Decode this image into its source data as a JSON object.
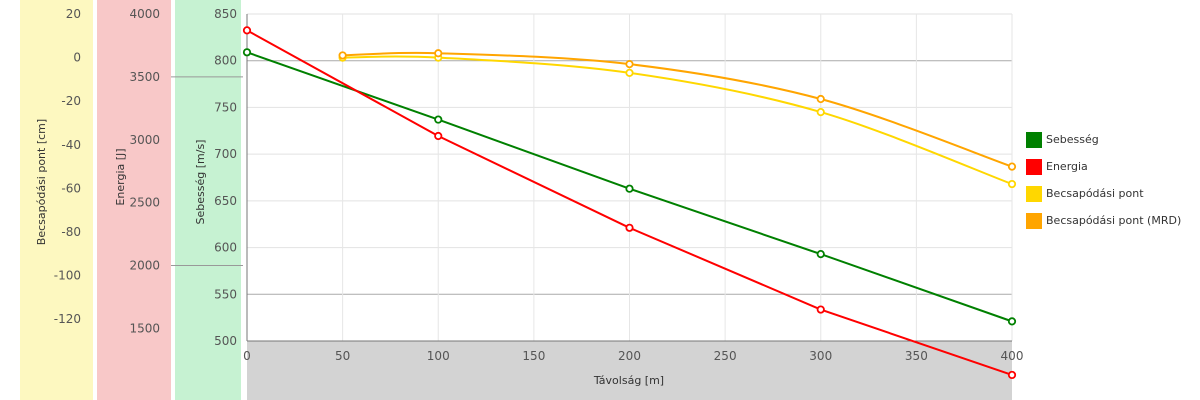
{
  "chart_data": {
    "type": "line",
    "xlabel": "Távolság [m]",
    "xlim": [
      0,
      400
    ],
    "x_ticks": [
      0,
      50,
      100,
      150,
      200,
      250,
      300,
      350,
      400
    ],
    "grid": true,
    "legend_position": "right",
    "axes": [
      {
        "id": "drop",
        "label": "Becsapódási pont [cm]",
        "ylim": [
          -130,
          20
        ],
        "ticks": [
          20,
          0,
          -20,
          -40,
          -60,
          -80,
          -100,
          -120
        ],
        "band_color": "#fdf8c0"
      },
      {
        "id": "energy",
        "label": "Energia [J]",
        "ylim": [
          1400,
          4000
        ],
        "ticks": [
          4000,
          3500,
          3000,
          2500,
          2000,
          1500
        ],
        "band_color": "#f8c8c8"
      },
      {
        "id": "velocity",
        "label": "Sebesség [m/s]",
        "ylim": [
          500,
          850
        ],
        "ticks": [
          850,
          800,
          750,
          700,
          650,
          600,
          550,
          500
        ],
        "band_color": "#c6f2d2"
      }
    ],
    "series": [
      {
        "name": "Sebesség",
        "axis": "velocity",
        "color": "#008000",
        "smooth": false,
        "x": [
          0,
          100,
          200,
          300,
          400
        ],
        "y": [
          809,
          737,
          663,
          593,
          521
        ]
      },
      {
        "name": "Energia",
        "axis": "energy",
        "color": "#ff0000",
        "smooth": false,
        "x": [
          0,
          100,
          200,
          300,
          400
        ],
        "y": [
          3870,
          3030,
          2300,
          1650,
          1130
        ]
      },
      {
        "name": "Becsapódási pont",
        "axis": "drop",
        "color": "#ffd700",
        "smooth": true,
        "x": [
          50,
          100,
          200,
          300,
          400
        ],
        "y": [
          0,
          0,
          -7,
          -25,
          -58
        ]
      },
      {
        "name": "Becsapódási pont (MRD)",
        "axis": "drop",
        "color": "#ffa500",
        "smooth": true,
        "x": [
          50,
          100,
          200,
          300,
          400
        ],
        "y": [
          1,
          2,
          -3,
          -19,
          -50
        ]
      }
    ]
  }
}
